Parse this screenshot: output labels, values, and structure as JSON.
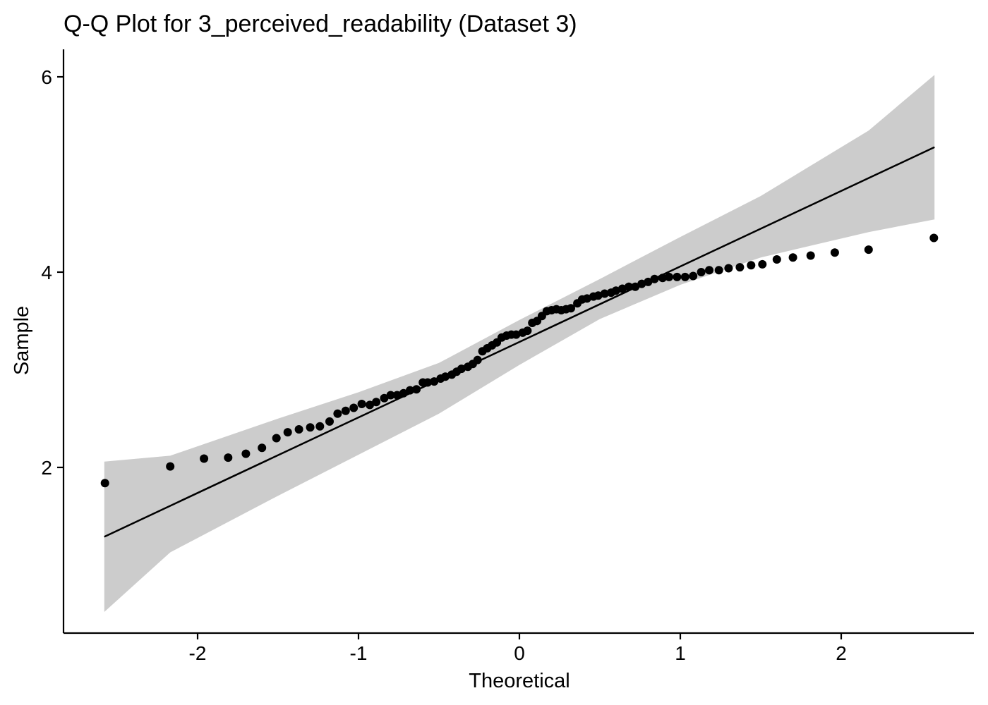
{
  "chart_data": {
    "type": "scatter",
    "title": "Q-Q Plot for 3_perceived_readability (Dataset 3)",
    "xlabel": "Theoretical",
    "ylabel": "Sample",
    "xlim": [
      -2.75,
      2.85
    ],
    "ylim": [
      0.5,
      6.3
    ],
    "x_ticks": [
      -2,
      -1,
      0,
      1,
      2
    ],
    "x_tick_labels": [
      "-2",
      "-1",
      "0",
      "1",
      "2"
    ],
    "y_ticks": [
      2,
      4,
      6
    ],
    "y_tick_labels": [
      "2",
      "4",
      "6"
    ],
    "grid": false,
    "legend": "none",
    "colors": {
      "points": "#000000",
      "line": "#000000",
      "band": "#cccccc"
    },
    "reference_line": {
      "x": [
        -2.58,
        2.58
      ],
      "y": [
        1.29,
        5.28
      ]
    },
    "confidence_band": {
      "x": [
        -2.58,
        -2.17,
        -1.5,
        -1.0,
        -0.5,
        0.0,
        0.5,
        1.0,
        1.5,
        2.17,
        2.58
      ],
      "lower": [
        0.52,
        1.13,
        1.71,
        2.13,
        2.55,
        3.05,
        3.52,
        3.87,
        4.15,
        4.41,
        4.54
      ],
      "upper": [
        2.06,
        2.12,
        2.5,
        2.77,
        3.07,
        3.51,
        3.93,
        4.36,
        4.78,
        5.45,
        6.02
      ]
    },
    "points": {
      "x": [
        -2.576,
        -2.17,
        -1.96,
        -1.81,
        -1.7,
        -1.6,
        -1.51,
        -1.44,
        -1.37,
        -1.3,
        -1.24,
        -1.18,
        -1.13,
        -1.08,
        -1.03,
        -0.98,
        -0.93,
        -0.89,
        -0.84,
        -0.8,
        -0.76,
        -0.72,
        -0.68,
        -0.64,
        -0.6,
        -0.57,
        -0.53,
        -0.49,
        -0.46,
        -0.42,
        -0.39,
        -0.36,
        -0.32,
        -0.29,
        -0.26,
        -0.23,
        -0.2,
        -0.17,
        -0.14,
        -0.11,
        -0.08,
        -0.05,
        -0.02,
        0.02,
        0.05,
        0.08,
        0.11,
        0.14,
        0.17,
        0.2,
        0.23,
        0.26,
        0.29,
        0.32,
        0.36,
        0.39,
        0.42,
        0.46,
        0.49,
        0.53,
        0.57,
        0.6,
        0.64,
        0.68,
        0.72,
        0.76,
        0.8,
        0.84,
        0.89,
        0.93,
        0.98,
        1.03,
        1.08,
        1.13,
        1.18,
        1.24,
        1.3,
        1.37,
        1.44,
        1.51,
        1.6,
        1.7,
        1.81,
        1.96,
        2.17,
        2.576
      ],
      "y": [
        1.84,
        2.01,
        2.09,
        2.1,
        2.14,
        2.2,
        2.3,
        2.36,
        2.39,
        2.41,
        2.42,
        2.47,
        2.55,
        2.58,
        2.61,
        2.65,
        2.64,
        2.67,
        2.71,
        2.74,
        2.74,
        2.76,
        2.79,
        2.8,
        2.87,
        2.87,
        2.88,
        2.91,
        2.93,
        2.95,
        2.98,
        3.01,
        3.03,
        3.06,
        3.1,
        3.19,
        3.22,
        3.25,
        3.28,
        3.33,
        3.35,
        3.36,
        3.36,
        3.38,
        3.4,
        3.48,
        3.5,
        3.55,
        3.6,
        3.61,
        3.62,
        3.61,
        3.62,
        3.63,
        3.68,
        3.72,
        3.73,
        3.75,
        3.76,
        3.78,
        3.79,
        3.81,
        3.83,
        3.85,
        3.85,
        3.88,
        3.9,
        3.93,
        3.94,
        3.95,
        3.95,
        3.95,
        3.96,
        4.0,
        4.02,
        4.02,
        4.04,
        4.05,
        4.07,
        4.08,
        4.13,
        4.15,
        4.17,
        4.2,
        4.23,
        4.35
      ]
    }
  }
}
